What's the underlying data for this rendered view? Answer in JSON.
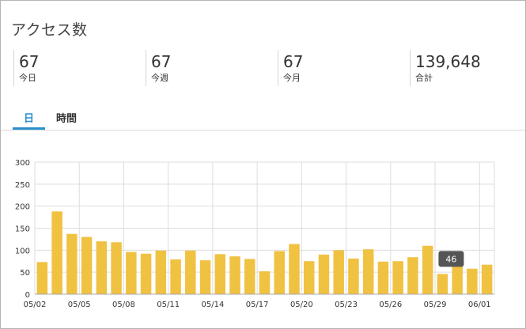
{
  "widget": {
    "title": "アクセス数",
    "stats": [
      {
        "value": "67",
        "label": "今日"
      },
      {
        "value": "67",
        "label": "今週"
      },
      {
        "value": "67",
        "label": "今月"
      },
      {
        "value": "139,648",
        "label": "合計"
      }
    ],
    "tabs": [
      {
        "label": "日",
        "active": true
      },
      {
        "label": "時間",
        "active": false
      }
    ]
  },
  "colors": {
    "bar": "#f0c242",
    "accent": "#2a8fcf",
    "grid": "#dddddd",
    "tooltip_bg": "#555555"
  },
  "chart_data": {
    "type": "bar",
    "categories": [
      "05/02",
      "05/03",
      "05/04",
      "05/05",
      "05/06",
      "05/07",
      "05/08",
      "05/09",
      "05/10",
      "05/11",
      "05/12",
      "05/13",
      "05/14",
      "05/15",
      "05/16",
      "05/17",
      "05/18",
      "05/19",
      "05/20",
      "05/21",
      "05/22",
      "05/23",
      "05/24",
      "05/25",
      "05/26",
      "05/27",
      "05/28",
      "05/29",
      "05/30",
      "05/31",
      "06/01"
    ],
    "values": [
      73,
      188,
      137,
      130,
      120,
      118,
      96,
      92,
      99,
      79,
      99,
      77,
      91,
      86,
      80,
      52,
      98,
      114,
      75,
      90,
      100,
      81,
      102,
      74,
      75,
      84,
      110,
      46,
      86,
      58,
      67
    ],
    "x_tick_labels": [
      "05/02",
      "05/05",
      "05/08",
      "05/11",
      "05/14",
      "05/17",
      "05/20",
      "05/23",
      "05/26",
      "05/29",
      "06/01"
    ],
    "y_ticks": [
      0,
      50,
      100,
      150,
      200,
      250,
      300
    ],
    "ylim": [
      0,
      300
    ],
    "grid": true,
    "tooltip": {
      "category": "05/29",
      "text": "46"
    }
  }
}
